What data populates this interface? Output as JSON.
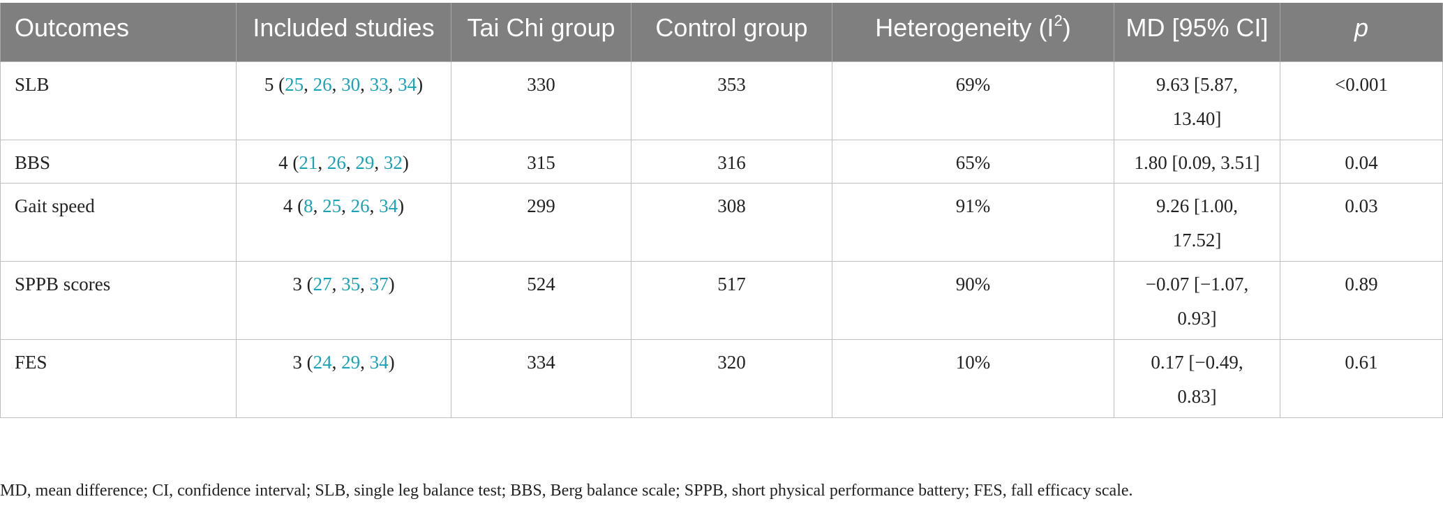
{
  "header": {
    "outcomes": "Outcomes",
    "included_studies": "Included studies",
    "tai_chi_group": "Tai Chi group",
    "control_group": "Control group",
    "heterogeneity_prefix": "Heterogeneity (I",
    "heterogeneity_sup": "2",
    "heterogeneity_suffix": ")",
    "md_ci": "MD [95% CI]",
    "p": "p"
  },
  "rows": [
    {
      "outcome": "SLB",
      "studies_count": "5",
      "refs": [
        "25",
        "26",
        "30",
        "33",
        "34"
      ],
      "tai_chi": "330",
      "control": "353",
      "heterogeneity": "69%",
      "md_line1": "9.63 [5.87,",
      "md_line2": "13.40]",
      "p": "<0.001"
    },
    {
      "outcome": "BBS",
      "studies_count": "4",
      "refs": [
        "21",
        "26",
        "29",
        "32"
      ],
      "tai_chi": "315",
      "control": "316",
      "heterogeneity": "65%",
      "md_line1": "1.80 [0.09, 3.51]",
      "md_line2": "",
      "p": "0.04"
    },
    {
      "outcome": "Gait speed",
      "studies_count": "4",
      "refs": [
        "8",
        "25",
        "26",
        "34"
      ],
      "tai_chi": "299",
      "control": "308",
      "heterogeneity": "91%",
      "md_line1": "9.26 [1.00,",
      "md_line2": "17.52]",
      "p": "0.03"
    },
    {
      "outcome": "SPPB scores",
      "studies_count": "3",
      "refs": [
        "27",
        "35",
        "37"
      ],
      "tai_chi": "524",
      "control": "517",
      "heterogeneity": "90%",
      "md_line1": "−0.07 [−1.07,",
      "md_line2": "0.93]",
      "p": "0.89"
    },
    {
      "outcome": "FES",
      "studies_count": "3",
      "refs": [
        "24",
        "29",
        "34"
      ],
      "tai_chi": "334",
      "control": "320",
      "heterogeneity": "10%",
      "md_line1": "0.17 [−0.49,",
      "md_line2": "0.83]",
      "p": "0.61"
    }
  ],
  "footnote": "MD, mean difference; CI, confidence interval; SLB, single leg balance test; BBS, Berg balance scale; SPPB, short physical performance battery; FES, fall efficacy scale.",
  "colors": {
    "header_bg": "#7f7f7f",
    "header_text": "#ffffff",
    "reference_link": "#1aa3b5",
    "grid_line": "#bdbdbd"
  }
}
